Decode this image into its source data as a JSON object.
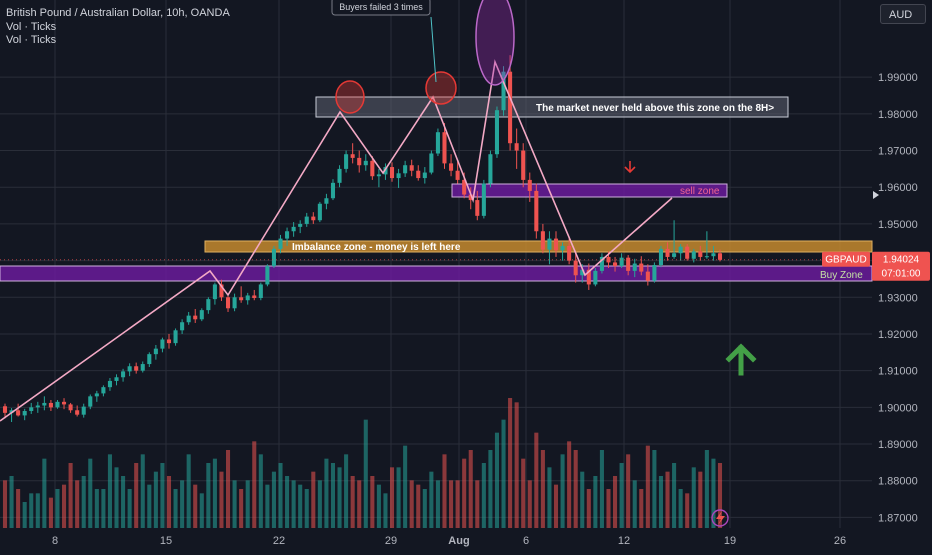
{
  "header": {
    "title": "British Pound / Australian Dollar, 10h, OANDA",
    "vol1": "Vol · Ticks",
    "vol2": "Vol · Ticks",
    "currency": "AUD"
  },
  "colors": {
    "background": "#131722",
    "up": "#26a69a",
    "down": "#ef5350",
    "grid": "#2a2e39",
    "zone_purple": "#6a1b9a",
    "zone_orange": "#c68a2e",
    "trend_line": "#f3a9c5",
    "annotation_red": "#e53935",
    "arrow_green": "#43a047"
  },
  "chart_data": {
    "type": "candlestick",
    "symbol": "GBPAUD",
    "timeframe": "10h",
    "x_tick_labels": [
      "8",
      "15",
      "22",
      "29",
      "Aug",
      "6",
      "12",
      "19",
      "26"
    ],
    "y_tick_labels": [
      "1.99000",
      "1.98000",
      "1.97000",
      "1.96000",
      "1.95000",
      "1.94000",
      "1.93000",
      "1.92000",
      "1.91000",
      "1.90000",
      "1.89000",
      "1.88000",
      "1.87000"
    ],
    "ylim": [
      1.8682,
      1.9985
    ],
    "current_price": "1.94024",
    "countdown": "07:01:00",
    "candles": [
      [
        1.9003,
        1.901,
        1.897,
        1.8985
      ],
      [
        1.8985,
        1.8998,
        1.896,
        1.8992
      ],
      [
        1.8992,
        1.901,
        1.8975,
        1.8978
      ],
      [
        1.8978,
        1.8996,
        1.8965,
        1.899
      ],
      [
        1.899,
        1.9012,
        1.8982,
        1.9
      ],
      [
        1.9,
        1.9015,
        1.8985,
        1.9005
      ],
      [
        1.9005,
        1.903,
        1.8992,
        1.9012
      ],
      [
        1.9012,
        1.902,
        1.899,
        1.9
      ],
      [
        1.9,
        1.902,
        1.8996,
        1.9015
      ],
      [
        1.9015,
        1.9025,
        1.8995,
        1.9008
      ],
      [
        1.9008,
        1.9012,
        1.8985,
        1.8992
      ],
      [
        1.8992,
        1.9005,
        1.8975,
        1.898
      ],
      [
        1.898,
        1.901,
        1.8972,
        1.9002
      ],
      [
        1.9002,
        1.9035,
        1.8995,
        1.903
      ],
      [
        1.903,
        1.9045,
        1.9015,
        1.9038
      ],
      [
        1.9038,
        1.906,
        1.903,
        1.9055
      ],
      [
        1.9055,
        1.908,
        1.9045,
        1.9072
      ],
      [
        1.9072,
        1.909,
        1.906,
        1.9082
      ],
      [
        1.9082,
        1.9105,
        1.907,
        1.9098
      ],
      [
        1.9098,
        1.912,
        1.9085,
        1.9112
      ],
      [
        1.9112,
        1.9122,
        1.9092,
        1.91
      ],
      [
        1.91,
        1.9125,
        1.9095,
        1.9118
      ],
      [
        1.9118,
        1.915,
        1.911,
        1.9145
      ],
      [
        1.9145,
        1.917,
        1.913,
        1.916
      ],
      [
        1.916,
        1.919,
        1.915,
        1.9185
      ],
      [
        1.9185,
        1.92,
        1.916,
        1.9175
      ],
      [
        1.9175,
        1.9215,
        1.9168,
        1.921
      ],
      [
        1.921,
        1.924,
        1.92,
        1.9232
      ],
      [
        1.9232,
        1.926,
        1.9225,
        1.925
      ],
      [
        1.925,
        1.9268,
        1.923,
        1.924
      ],
      [
        1.924,
        1.927,
        1.9235,
        1.9265
      ],
      [
        1.9265,
        1.93,
        1.9255,
        1.9295
      ],
      [
        1.9295,
        1.934,
        1.928,
        1.9335
      ],
      [
        1.9335,
        1.9348,
        1.929,
        1.93
      ],
      [
        1.93,
        1.9305,
        1.926,
        1.927
      ],
      [
        1.927,
        1.931,
        1.9262,
        1.93
      ],
      [
        1.93,
        1.933,
        1.9285,
        1.9292
      ],
      [
        1.9292,
        1.9312,
        1.928,
        1.9305
      ],
      [
        1.9305,
        1.932,
        1.9292,
        1.9298
      ],
      [
        1.9298,
        1.934,
        1.9292,
        1.9335
      ],
      [
        1.9335,
        1.939,
        1.933,
        1.9385
      ],
      [
        1.9385,
        1.944,
        1.938,
        1.9432
      ],
      [
        1.9432,
        1.947,
        1.942,
        1.946
      ],
      [
        1.946,
        1.949,
        1.944,
        1.948
      ],
      [
        1.948,
        1.9505,
        1.9465,
        1.9492
      ],
      [
        1.9492,
        1.951,
        1.9475,
        1.95
      ],
      [
        1.95,
        1.953,
        1.9492,
        1.952
      ],
      [
        1.952,
        1.9532,
        1.95,
        1.951
      ],
      [
        1.951,
        1.956,
        1.9505,
        1.9555
      ],
      [
        1.9555,
        1.9582,
        1.954,
        1.957
      ],
      [
        1.957,
        1.9622,
        1.9565,
        1.9612
      ],
      [
        1.9612,
        1.966,
        1.96,
        1.965
      ],
      [
        1.965,
        1.97,
        1.964,
        1.969
      ],
      [
        1.969,
        1.972,
        1.9665,
        1.968
      ],
      [
        1.968,
        1.97,
        1.964,
        1.966
      ],
      [
        1.966,
        1.969,
        1.9645,
        1.9672
      ],
      [
        1.9672,
        1.9685,
        1.962,
        1.963
      ],
      [
        1.963,
        1.965,
        1.96,
        1.9635
      ],
      [
        1.9635,
        1.9665,
        1.962,
        1.9655
      ],
      [
        1.9655,
        1.9668,
        1.9615,
        1.9625
      ],
      [
        1.9625,
        1.965,
        1.9598,
        1.9638
      ],
      [
        1.9638,
        1.9672,
        1.9628,
        1.966
      ],
      [
        1.966,
        1.9675,
        1.963,
        1.9645
      ],
      [
        1.9645,
        1.966,
        1.9618,
        1.9625
      ],
      [
        1.9625,
        1.9655,
        1.961,
        1.964
      ],
      [
        1.964,
        1.97,
        1.9635,
        1.9692
      ],
      [
        1.9692,
        1.976,
        1.9685,
        1.975
      ],
      [
        1.975,
        1.9775,
        1.965,
        1.9665
      ],
      [
        1.9665,
        1.969,
        1.963,
        1.9645
      ],
      [
        1.9645,
        1.967,
        1.961,
        1.962
      ],
      [
        1.962,
        1.964,
        1.957,
        1.958
      ],
      [
        1.958,
        1.96,
        1.954,
        1.9565
      ],
      [
        1.9565,
        1.959,
        1.951,
        1.9522
      ],
      [
        1.9522,
        1.962,
        1.9515,
        1.961
      ],
      [
        1.961,
        1.97,
        1.96,
        1.969
      ],
      [
        1.969,
        1.982,
        1.968,
        1.981
      ],
      [
        1.981,
        1.993,
        1.9795,
        1.9915
      ],
      [
        1.9915,
        1.996,
        1.97,
        1.972
      ],
      [
        1.972,
        1.976,
        1.965,
        1.97
      ],
      [
        1.97,
        1.972,
        1.96,
        1.962
      ],
      [
        1.962,
        1.964,
        1.956,
        1.959
      ],
      [
        1.959,
        1.961,
        1.946,
        1.948
      ],
      [
        1.948,
        1.95,
        1.942,
        1.943
      ],
      [
        1.943,
        1.948,
        1.939,
        1.946
      ],
      [
        1.946,
        1.948,
        1.941,
        1.9428
      ],
      [
        1.9428,
        1.945,
        1.94,
        1.944
      ],
      [
        1.944,
        1.946,
        1.939,
        1.94
      ],
      [
        1.94,
        1.9425,
        1.934,
        1.936
      ],
      [
        1.936,
        1.939,
        1.934,
        1.9375
      ],
      [
        1.9375,
        1.9392,
        1.932,
        1.9335
      ],
      [
        1.9335,
        1.938,
        1.933,
        1.9372
      ],
      [
        1.9372,
        1.942,
        1.9365,
        1.941
      ],
      [
        1.941,
        1.9425,
        1.938,
        1.9395
      ],
      [
        1.9395,
        1.941,
        1.937,
        1.9385
      ],
      [
        1.9385,
        1.942,
        1.938,
        1.9408
      ],
      [
        1.9408,
        1.9415,
        1.936,
        1.9372
      ],
      [
        1.9372,
        1.9405,
        1.9355,
        1.9392
      ],
      [
        1.9392,
        1.9412,
        1.936,
        1.937
      ],
      [
        1.937,
        1.939,
        1.9332,
        1.9345
      ],
      [
        1.9345,
        1.9395,
        1.934,
        1.9388
      ],
      [
        1.9388,
        1.944,
        1.9382,
        1.9432
      ],
      [
        1.9432,
        1.945,
        1.94,
        1.941
      ],
      [
        1.941,
        1.951,
        1.9405,
        1.942
      ],
      [
        1.942,
        1.9445,
        1.94,
        1.9438
      ],
      [
        1.9438,
        1.9445,
        1.94,
        1.9405
      ],
      [
        1.9405,
        1.9432,
        1.9395,
        1.9425
      ],
      [
        1.9425,
        1.944,
        1.94,
        1.941
      ],
      [
        1.941,
        1.948,
        1.9405,
        1.9412
      ],
      [
        1.9412,
        1.944,
        1.94,
        1.942
      ],
      [
        1.942,
        1.943,
        1.9398,
        1.9402
      ]
    ],
    "volume": [
      11,
      12,
      9,
      6,
      8,
      8,
      16,
      7,
      9,
      10,
      15,
      11,
      12,
      16,
      9,
      9,
      17,
      14,
      12,
      9,
      15,
      17,
      10,
      13,
      15,
      12,
      9,
      11,
      17,
      10,
      8,
      15,
      16,
      13,
      18,
      11,
      9,
      11,
      20,
      17,
      10,
      13,
      15,
      12,
      11,
      10,
      9,
      13,
      11,
      16,
      15,
      14,
      17,
      12,
      11,
      25,
      12,
      10,
      8,
      14,
      14,
      19,
      11,
      10,
      9,
      13,
      11,
      17,
      11,
      11,
      16,
      18,
      11,
      15,
      18,
      22,
      25,
      30,
      29,
      16,
      11,
      22,
      18,
      14,
      10,
      17,
      20,
      18,
      13,
      9,
      12,
      18,
      9,
      12,
      15,
      17,
      11,
      9,
      19,
      18,
      12,
      13,
      15,
      9,
      8,
      14,
      13,
      18,
      16,
      15
    ],
    "annotations": {
      "buyers_failed": "Buyers failed 3 times",
      "market_zone": "The market never held above this zone on the 8H>",
      "sell_zone": "sell zone",
      "imbalance_zone": "Imbalance zone - money is left here",
      "buy_zone": "Buy Zone"
    }
  }
}
